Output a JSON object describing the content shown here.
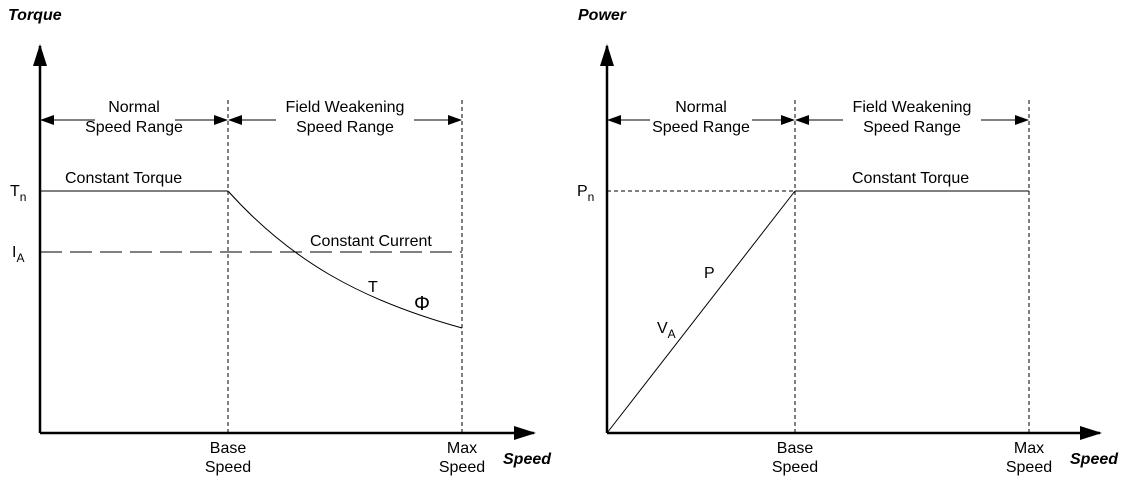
{
  "left": {
    "y_axis_title": "Torque",
    "x_axis_title": "Speed",
    "region_1": [
      "Normal",
      "Speed Range"
    ],
    "region_2": [
      "Field Weakening",
      "Speed Range"
    ],
    "tick_1": [
      "Base",
      "Speed"
    ],
    "tick_2": [
      "Max",
      "Speed"
    ],
    "level_1": {
      "base": "T",
      "sub": "n"
    },
    "level_2": {
      "base": "I",
      "sub": "A"
    },
    "curve_label_1": "Constant Torque",
    "curve_label_2": "Constant Current",
    "curve_label_3": "T",
    "curve_label_4": "Φ"
  },
  "right": {
    "y_axis_title": "Power",
    "x_axis_title": "Speed",
    "region_1": [
      "Normal",
      "Speed Range"
    ],
    "region_2": [
      "Field Weakening",
      "Speed Range"
    ],
    "tick_1": [
      "Base",
      "Speed"
    ],
    "tick_2": [
      "Max",
      "Speed"
    ],
    "level_1": {
      "base": "P",
      "sub": "n"
    },
    "curve_label_1": "Constant Torque",
    "curve_label_2": {
      "base": "V",
      "sub": "A"
    },
    "curve_label_3": "P"
  }
}
